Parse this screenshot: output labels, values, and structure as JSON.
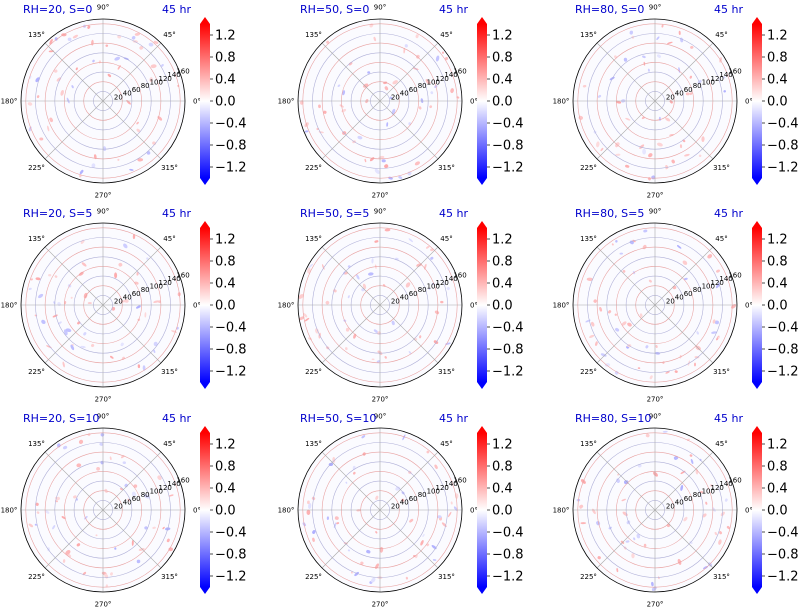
{
  "figure": {
    "time_label": "45 hr",
    "title_color": "#0000cc",
    "colorbar": {
      "ticks": [
        "1.2",
        "0.8",
        "0.4",
        "0.0",
        "−0.4",
        "−0.8",
        "−1.2"
      ],
      "tick_values": [
        1.2,
        0.8,
        0.4,
        0.0,
        -0.4,
        -0.8,
        -1.2
      ],
      "range": [
        -1.4,
        1.4
      ],
      "colormap": "bwr",
      "color_min": "#0000ff",
      "color_mid": "#ffffff",
      "color_max": "#ff0000"
    },
    "polar_axes": {
      "angle_labels": [
        "0°",
        "45°",
        "90°",
        "135°",
        "180°",
        "225°",
        "270°",
        "315°"
      ],
      "angle_values": [
        0,
        45,
        90,
        135,
        180,
        225,
        270,
        315
      ],
      "radial_labels": [
        "20",
        "40",
        "60",
        "80",
        "100",
        "120",
        "140",
        "160"
      ],
      "radial_values": [
        20,
        40,
        60,
        80,
        100,
        120,
        140,
        160
      ],
      "r_max": 170,
      "grid": true
    }
  },
  "chart_data": [
    {
      "type": "heatmap",
      "projection": "polar",
      "title": "RH=20, S=0",
      "time": "45 hr",
      "clim": [
        -1.4,
        1.4
      ]
    },
    {
      "type": "heatmap",
      "projection": "polar",
      "title": "RH=50, S=0",
      "time": "45 hr",
      "clim": [
        -1.4,
        1.4
      ]
    },
    {
      "type": "heatmap",
      "projection": "polar",
      "title": "RH=80, S=0",
      "time": "45 hr",
      "clim": [
        -1.4,
        1.4
      ]
    },
    {
      "type": "heatmap",
      "projection": "polar",
      "title": "RH=20, S=5",
      "time": "45 hr",
      "clim": [
        -1.4,
        1.4
      ]
    },
    {
      "type": "heatmap",
      "projection": "polar",
      "title": "RH=50, S=5",
      "time": "45 hr",
      "clim": [
        -1.4,
        1.4
      ]
    },
    {
      "type": "heatmap",
      "projection": "polar",
      "title": "RH=80, S=5",
      "time": "45 hr",
      "clim": [
        -1.4,
        1.4
      ]
    },
    {
      "type": "heatmap",
      "projection": "polar",
      "title": "RH=20, S=10",
      "time": "45 hr",
      "clim": [
        -1.4,
        1.4
      ]
    },
    {
      "type": "heatmap",
      "projection": "polar",
      "title": "RH=50, S=10",
      "time": "45 hr",
      "clim": [
        -1.4,
        1.4
      ]
    },
    {
      "type": "heatmap",
      "projection": "polar",
      "title": "RH=80, S=10",
      "time": "45 hr",
      "clim": [
        -1.4,
        1.4
      ]
    }
  ]
}
